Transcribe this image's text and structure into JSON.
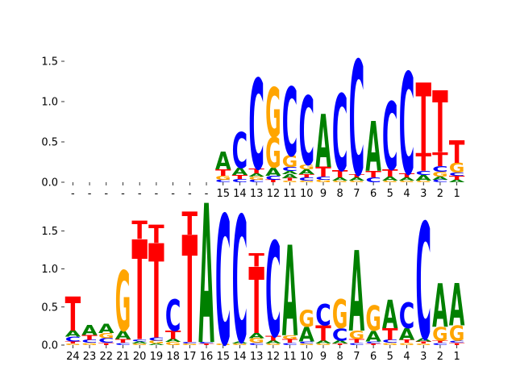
{
  "colors": {
    "A": "#008000",
    "C": "#0000ff",
    "G": "#ffa500",
    "T": "#ff0000"
  },
  "chart_data": [
    {
      "type": "sequence_logo",
      "ylim": [
        0,
        1.7
      ],
      "yticks": [
        0.0,
        0.5,
        1.0,
        1.5
      ],
      "ytick_labels": [
        "0.0",
        "0.5",
        "1.0",
        "1.5"
      ],
      "positions": [
        "-",
        "-",
        "-",
        "-",
        "-",
        "-",
        "-",
        "-",
        "-",
        "15",
        "14",
        "13",
        "12",
        "11",
        "10",
        "9",
        "8",
        "7",
        "6",
        "5",
        "4",
        "3",
        "2",
        "1"
      ],
      "columns": [
        [],
        [],
        [],
        [],
        [],
        [],
        [],
        [],
        [],
        [
          [
            "C",
            0.03
          ],
          [
            "G",
            0.05
          ],
          [
            "T",
            0.08
          ],
          [
            "A",
            0.22
          ]
        ],
        [
          [
            "C",
            0.04
          ],
          [
            "T",
            0.05
          ],
          [
            "A",
            0.09
          ],
          [
            "C",
            0.44
          ]
        ],
        [
          [
            "C",
            0.03
          ],
          [
            "G",
            0.04
          ],
          [
            "A",
            0.04
          ],
          [
            "T",
            0.06
          ],
          [
            "C",
            1.12
          ]
        ],
        [
          [
            "T",
            0.03
          ],
          [
            "C",
            0.05
          ],
          [
            "A",
            0.1
          ],
          [
            "G",
            0.38
          ],
          [
            "G",
            0.62
          ]
        ],
        [
          [
            "G",
            0.02
          ],
          [
            "T",
            0.03
          ],
          [
            "A",
            0.05
          ],
          [
            "A",
            0.04
          ],
          [
            "C",
            0.05
          ],
          [
            "G",
            0.14
          ],
          [
            "C",
            0.85
          ]
        ],
        [
          [
            "G",
            0.02
          ],
          [
            "C",
            0.04
          ],
          [
            "T",
            0.04
          ],
          [
            "A",
            0.06
          ],
          [
            "G",
            0.06
          ],
          [
            "C",
            0.85
          ]
        ],
        [
          [
            "G",
            0.03
          ],
          [
            "C",
            0.04
          ],
          [
            "T",
            0.12
          ],
          [
            "A",
            0.66
          ]
        ],
        [
          [
            "G",
            0.02
          ],
          [
            "A",
            0.04
          ],
          [
            "T",
            0.09
          ],
          [
            "C",
            0.95
          ]
        ],
        [
          [
            "G",
            0.02
          ],
          [
            "A",
            0.04
          ],
          [
            "T",
            0.04
          ],
          [
            "C",
            1.42
          ]
        ],
        [
          [
            "C",
            0.06
          ],
          [
            "T",
            0.08
          ],
          [
            "A",
            0.62
          ]
        ],
        [
          [
            "G",
            0.02
          ],
          [
            "A",
            0.05
          ],
          [
            "T",
            0.09
          ],
          [
            "C",
            0.84
          ]
        ],
        [
          [
            "G",
            0.02
          ],
          [
            "A",
            0.04
          ],
          [
            "T",
            0.05
          ],
          [
            "C",
            1.26
          ]
        ],
        [
          [
            "G",
            0.02
          ],
          [
            "A",
            0.07
          ],
          [
            "C",
            0.05
          ],
          [
            "T",
            0.22
          ],
          [
            "T",
            0.88
          ]
        ],
        [
          [
            "C",
            0.03
          ],
          [
            "A",
            0.04
          ],
          [
            "G",
            0.06
          ],
          [
            "C",
            0.07
          ],
          [
            "T",
            0.17
          ],
          [
            "T",
            0.77
          ]
        ],
        [
          [
            "A",
            0.03
          ],
          [
            "T",
            0.05
          ],
          [
            "C",
            0.04
          ],
          [
            "G",
            0.12
          ],
          [
            "T",
            0.28
          ]
        ]
      ]
    },
    {
      "type": "sequence_logo",
      "ylim": [
        0,
        1.8
      ],
      "yticks": [
        0.0,
        0.5,
        1.0,
        1.5
      ],
      "ytick_labels": [
        "0.0",
        "0.5",
        "1.0",
        "1.5"
      ],
      "positions": [
        "24",
        "23",
        "22",
        "21",
        "20",
        "19",
        "18",
        "17",
        "16",
        "15",
        "14",
        "13",
        "12",
        "11",
        "10",
        "9",
        "8",
        "7",
        "6",
        "5",
        "4",
        "3",
        "2",
        "1"
      ],
      "columns": [
        [
          [
            "G",
            0.02
          ],
          [
            "T",
            0.03
          ],
          [
            "C",
            0.06
          ],
          [
            "A",
            0.08
          ],
          [
            "T",
            0.45
          ]
        ],
        [
          [
            "G",
            0.03
          ],
          [
            "C",
            0.04
          ],
          [
            "T",
            0.06
          ],
          [
            "A",
            0.13
          ]
        ],
        [
          [
            "T",
            0.03
          ],
          [
            "C",
            0.06
          ],
          [
            "G",
            0.07
          ],
          [
            "A",
            0.12
          ]
        ],
        [
          [
            "C",
            0.03
          ],
          [
            "T",
            0.05
          ],
          [
            "A",
            0.11
          ],
          [
            "G",
            0.79
          ]
        ],
        [
          [
            "G",
            0.02
          ],
          [
            "A",
            0.03
          ],
          [
            "C",
            0.03
          ],
          [
            "T",
            1.31
          ],
          [
            "T",
            0.24
          ]
        ],
        [
          [
            "A",
            0.02
          ],
          [
            "G",
            0.04
          ],
          [
            "C",
            0.04
          ],
          [
            "T",
            1.24
          ],
          [
            "T",
            0.24
          ]
        ],
        [
          [
            "G",
            0.04
          ],
          [
            "A",
            0.04
          ],
          [
            "T",
            0.11
          ],
          [
            "C",
            0.41
          ]
        ],
        [
          [
            "G",
            0.02
          ],
          [
            "C",
            0.02
          ],
          [
            "T",
            1.41
          ],
          [
            "T",
            0.3
          ]
        ],
        [
          [
            "T",
            0.02
          ],
          [
            "C",
            0.02
          ],
          [
            "A",
            1.83
          ]
        ],
        [
          [
            "G",
            0.02
          ],
          [
            "C",
            1.7
          ]
        ],
        [
          [
            "G",
            0.02
          ],
          [
            "A",
            0.03
          ],
          [
            "C",
            1.66
          ]
        ],
        [
          [
            "C",
            0.03
          ],
          [
            "G",
            0.06
          ],
          [
            "A",
            0.07
          ],
          [
            "T",
            0.87
          ],
          [
            "T",
            0.17
          ]
        ],
        [
          [
            "G",
            0.02
          ],
          [
            "A",
            0.04
          ],
          [
            "T",
            0.06
          ],
          [
            "C",
            1.25
          ]
        ],
        [
          [
            "C",
            0.03
          ],
          [
            "T",
            0.05
          ],
          [
            "G",
            0.05
          ],
          [
            "A",
            1.19
          ]
        ],
        [
          [
            "G",
            0.02
          ],
          [
            "C",
            0.03
          ],
          [
            "A",
            0.19
          ],
          [
            "G",
            0.22
          ]
        ],
        [
          [
            "G",
            0.02
          ],
          [
            "A",
            0.04
          ],
          [
            "T",
            0.2
          ],
          [
            "C",
            0.28
          ]
        ],
        [
          [
            "T",
            0.02
          ],
          [
            "A",
            0.04
          ],
          [
            "C",
            0.16
          ],
          [
            "G",
            0.38
          ]
        ],
        [
          [
            "C",
            0.03
          ],
          [
            "T",
            0.05
          ],
          [
            "G",
            0.11
          ],
          [
            "A",
            1.06
          ]
        ],
        [
          [
            "T",
            0.02
          ],
          [
            "C",
            0.03
          ],
          [
            "A",
            0.14
          ],
          [
            "G",
            0.33
          ]
        ],
        [
          [
            "G",
            0.03
          ],
          [
            "C",
            0.04
          ],
          [
            "T",
            0.15
          ],
          [
            "A",
            0.37
          ]
        ],
        [
          [
            "G",
            0.03
          ],
          [
            "T",
            0.04
          ],
          [
            "A",
            0.15
          ],
          [
            "C",
            0.34
          ]
        ],
        [
          [
            "G",
            0.02
          ],
          [
            "T",
            0.03
          ],
          [
            "A",
            0.04
          ],
          [
            "C",
            1.53
          ]
        ],
        [
          [
            "C",
            0.03
          ],
          [
            "T",
            0.03
          ],
          [
            "G",
            0.18
          ],
          [
            "A",
            0.57
          ]
        ],
        [
          [
            "T",
            0.03
          ],
          [
            "C",
            0.03
          ],
          [
            "G",
            0.2
          ],
          [
            "A",
            0.56
          ]
        ]
      ]
    }
  ]
}
